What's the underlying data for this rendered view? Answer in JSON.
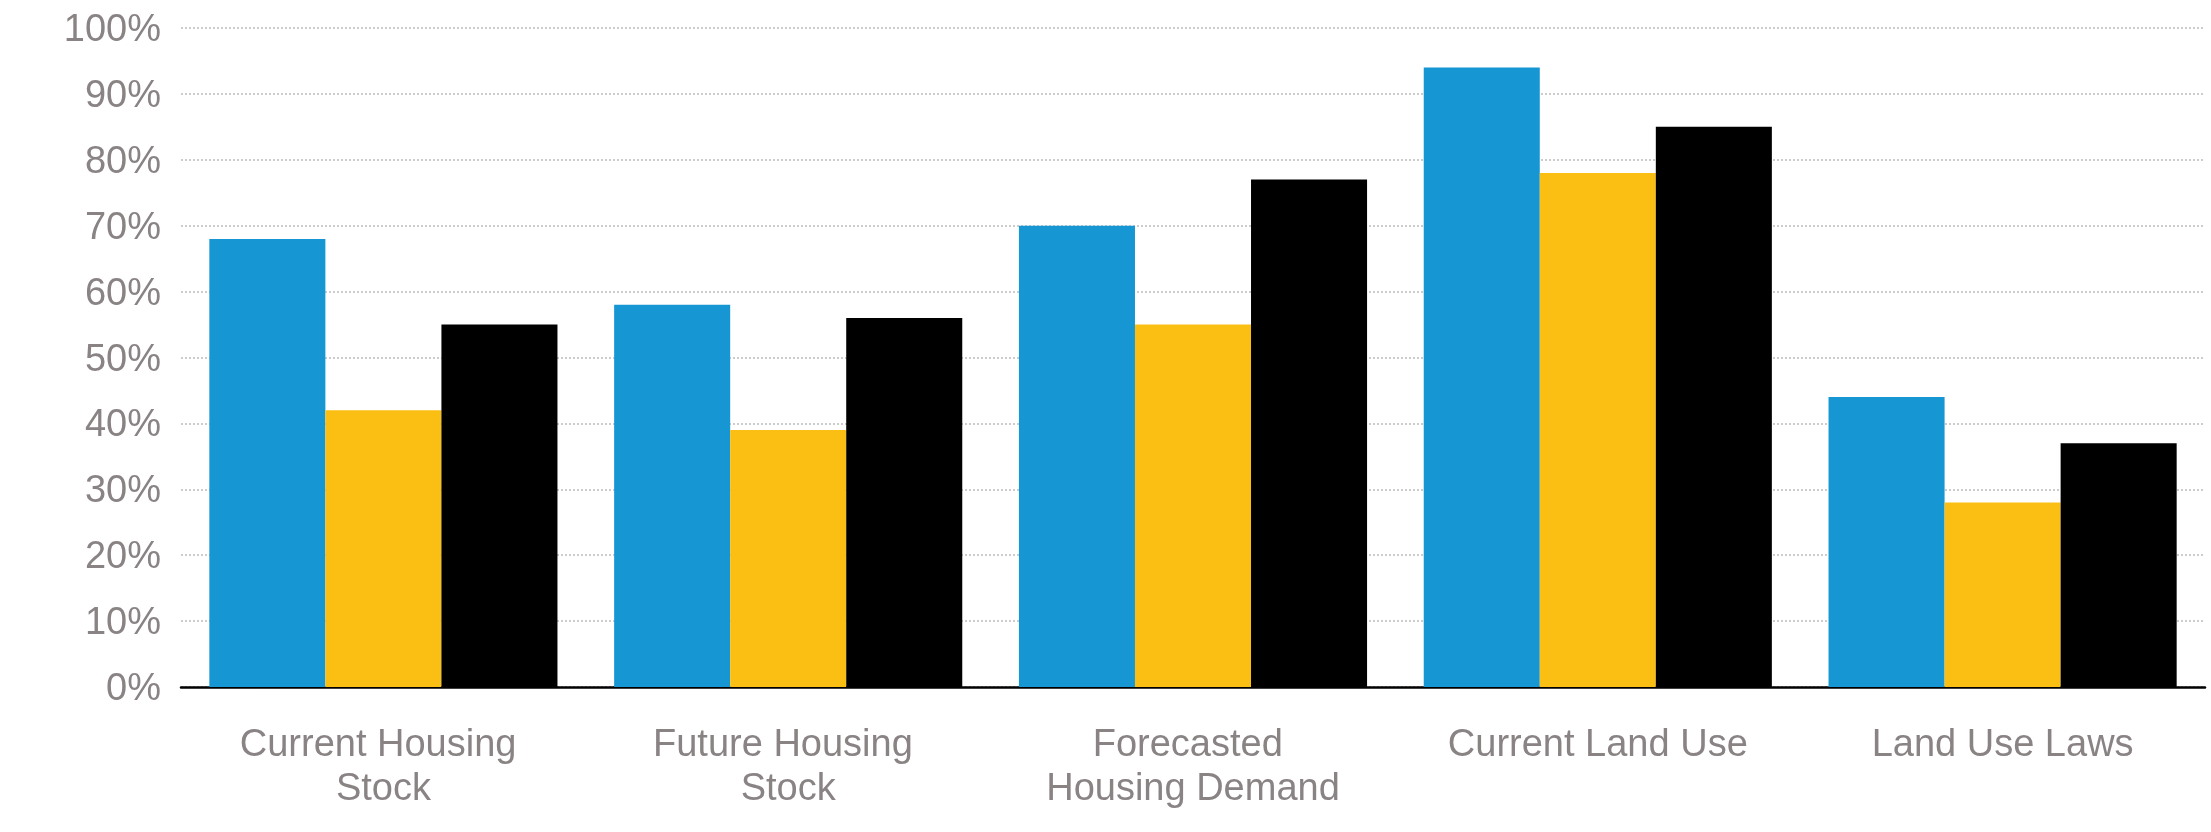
{
  "chart_data": {
    "type": "bar",
    "categories": [
      "Current Housing Stock",
      "Future Housing Stock",
      "Forecasted Housing Demand",
      "Current Land Use",
      "Land Use Laws"
    ],
    "series": [
      {
        "color": "#1796d4",
        "values": [
          68,
          58,
          70,
          94,
          44
        ]
      },
      {
        "color": "#fbbf14",
        "values": [
          42,
          39,
          55,
          78,
          28
        ]
      },
      {
        "color": "#000000",
        "values": [
          55,
          56,
          77,
          85,
          37
        ]
      }
    ],
    "ylim": [
      0,
      100
    ],
    "yticks": [
      {
        "value": 0,
        "label": "0%"
      },
      {
        "value": 10,
        "label": "10%"
      },
      {
        "value": 20,
        "label": "20%"
      },
      {
        "value": 30,
        "label": "30%"
      },
      {
        "value": 40,
        "label": "40%"
      },
      {
        "value": 50,
        "label": "50%"
      },
      {
        "value": 60,
        "label": "60%"
      },
      {
        "value": 70,
        "label": "70%"
      },
      {
        "value": 80,
        "label": "80%"
      },
      {
        "value": 90,
        "label": "90%"
      },
      {
        "value": 100,
        "label": "100%"
      }
    ],
    "grid": "y"
  }
}
